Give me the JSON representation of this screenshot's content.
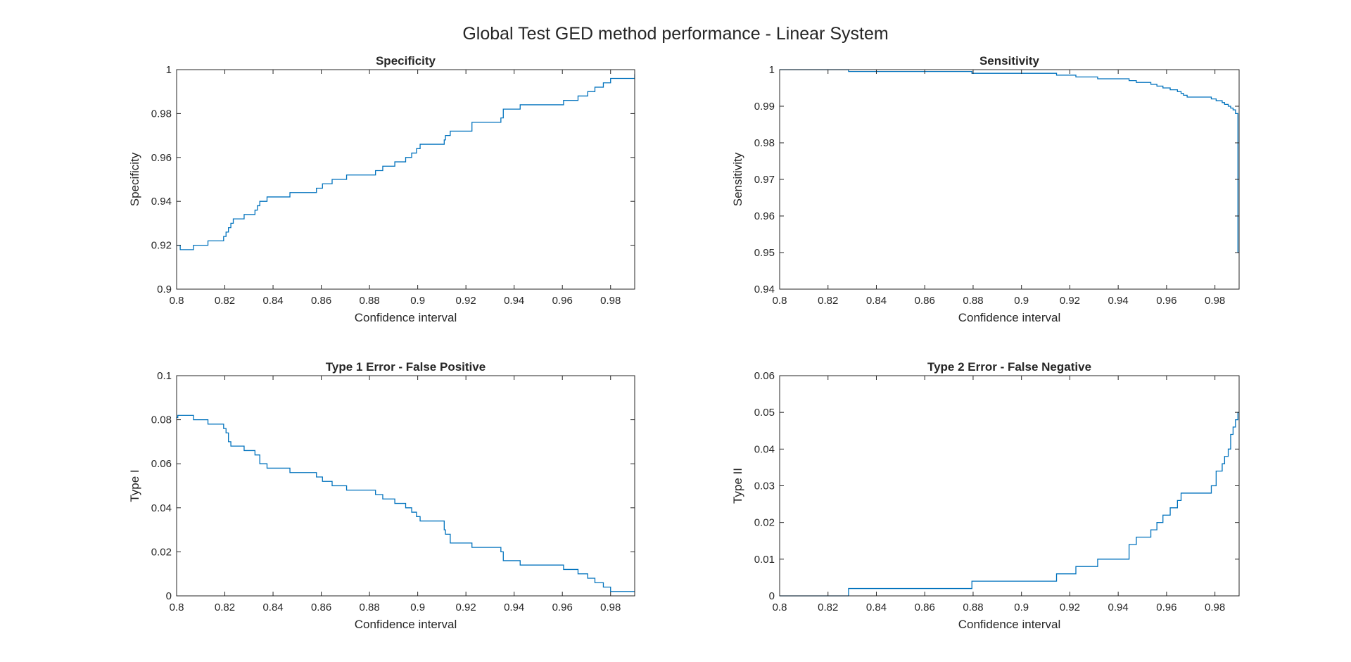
{
  "figure": {
    "title": "Global Test GED method performance - Linear System",
    "line_color": "#0072BD",
    "axis_color": "#262626"
  },
  "chart_data": [
    {
      "type": "line",
      "title": "Specificity",
      "xlabel": "Confidence interval",
      "ylabel": "Specificity",
      "xlim": [
        0.8,
        0.99
      ],
      "ylim": [
        0.9,
        1.0
      ],
      "xticks": [
        0.8,
        0.82,
        0.84,
        0.86,
        0.88,
        0.9,
        0.92,
        0.94,
        0.96,
        0.98
      ],
      "xtick_labels": [
        "0.8",
        "0.82",
        "0.84",
        "0.86",
        "0.88",
        "0.9",
        "0.92",
        "0.94",
        "0.96",
        "0.98"
      ],
      "yticks": [
        0.9,
        0.92,
        0.94,
        0.96,
        0.98,
        1.0
      ],
      "ytick_labels": [
        "0.9",
        "0.92",
        "0.94",
        "0.96",
        "0.98",
        "1"
      ],
      "series": [
        {
          "step": true,
          "x": [
            0.8,
            0.8015,
            0.807,
            0.813,
            0.8195,
            0.8205,
            0.8215,
            0.8225,
            0.8235,
            0.828,
            0.8325,
            0.8335,
            0.8345,
            0.8355,
            0.8375,
            0.847,
            0.858,
            0.8605,
            0.8645,
            0.8705,
            0.8825,
            0.8855,
            0.888,
            0.8905,
            0.895,
            0.8975,
            0.8995,
            0.901,
            0.911,
            0.9115,
            0.9135,
            0.9225,
            0.9345,
            0.9355,
            0.9355,
            0.9425,
            0.9605,
            0.9665,
            0.9705,
            0.9735,
            0.977,
            0.98,
            0.99
          ],
          "y": [
            0.92,
            0.918,
            0.92,
            0.922,
            0.924,
            0.926,
            0.928,
            0.93,
            0.932,
            0.934,
            0.936,
            0.938,
            0.94,
            0.94,
            0.942,
            0.944,
            0.946,
            0.948,
            0.95,
            0.952,
            0.954,
            0.956,
            0.956,
            0.958,
            0.96,
            0.962,
            0.964,
            0.966,
            0.968,
            0.97,
            0.972,
            0.976,
            0.978,
            0.98,
            0.982,
            0.984,
            0.986,
            0.988,
            0.99,
            0.992,
            0.994,
            0.996,
            0.998
          ]
        }
      ]
    },
    {
      "type": "line",
      "title": "Sensitivity",
      "xlabel": "Confidence interval",
      "ylabel": "Sensitivity",
      "xlim": [
        0.8,
        0.99
      ],
      "ylim": [
        0.94,
        1.0
      ],
      "xticks": [
        0.8,
        0.82,
        0.84,
        0.86,
        0.88,
        0.9,
        0.92,
        0.94,
        0.96,
        0.98
      ],
      "xtick_labels": [
        "0.8",
        "0.82",
        "0.84",
        "0.86",
        "0.88",
        "0.9",
        "0.92",
        "0.94",
        "0.96",
        "0.98"
      ],
      "yticks": [
        0.94,
        0.95,
        0.96,
        0.97,
        0.98,
        0.99,
        1.0
      ],
      "ytick_labels": [
        "0.94",
        "0.95",
        "0.96",
        "0.97",
        "0.98",
        "0.99",
        "1"
      ],
      "series": [
        {
          "step": true,
          "x": [
            0.8,
            0.8285,
            0.8795,
            0.9145,
            0.9225,
            0.9315,
            0.9445,
            0.9475,
            0.9535,
            0.956,
            0.9585,
            0.9615,
            0.9645,
            0.966,
            0.967,
            0.9685,
            0.9785,
            0.9805,
            0.983,
            0.984,
            0.9855,
            0.9865,
            0.9875,
            0.9885,
            0.9895
          ],
          "y": [
            1.0,
            0.9995,
            0.999,
            0.9985,
            0.998,
            0.9975,
            0.997,
            0.9965,
            0.996,
            0.9955,
            0.995,
            0.9945,
            0.994,
            0.9935,
            0.993,
            0.9925,
            0.992,
            0.9915,
            0.991,
            0.9905,
            0.99,
            0.9895,
            0.989,
            0.988,
            0.95
          ]
        }
      ]
    },
    {
      "type": "line",
      "title": "Type 1 Error - False Positive",
      "xlabel": "Confidence interval",
      "ylabel": "Type I",
      "xlim": [
        0.8,
        0.99
      ],
      "ylim": [
        0,
        0.1
      ],
      "xticks": [
        0.8,
        0.82,
        0.84,
        0.86,
        0.88,
        0.9,
        0.92,
        0.94,
        0.96,
        0.98
      ],
      "xtick_labels": [
        "0.8",
        "0.82",
        "0.84",
        "0.86",
        "0.88",
        "0.9",
        "0.92",
        "0.94",
        "0.96",
        "0.98"
      ],
      "yticks": [
        0,
        0.02,
        0.04,
        0.06,
        0.08,
        0.1
      ],
      "ytick_labels": [
        "0",
        "0.02",
        "0.04",
        "0.06",
        "0.08",
        "0.1"
      ],
      "series": [
        {
          "step": true,
          "x": [
            0.8,
            0.8005,
            0.807,
            0.813,
            0.8195,
            0.8205,
            0.8215,
            0.8225,
            0.828,
            0.8325,
            0.8345,
            0.8375,
            0.847,
            0.858,
            0.8605,
            0.8645,
            0.8705,
            0.8825,
            0.8855,
            0.8905,
            0.895,
            0.8975,
            0.8995,
            0.901,
            0.911,
            0.9115,
            0.9135,
            0.9225,
            0.9345,
            0.9355,
            0.9425,
            0.9605,
            0.9665,
            0.9705,
            0.9735,
            0.977,
            0.98,
            0.99
          ],
          "y": [
            0.081,
            0.082,
            0.08,
            0.078,
            0.076,
            0.074,
            0.07,
            0.068,
            0.066,
            0.064,
            0.06,
            0.058,
            0.056,
            0.054,
            0.052,
            0.05,
            0.048,
            0.046,
            0.044,
            0.042,
            0.04,
            0.038,
            0.036,
            0.034,
            0.03,
            0.028,
            0.024,
            0.022,
            0.02,
            0.016,
            0.014,
            0.012,
            0.01,
            0.008,
            0.006,
            0.004,
            0.002,
            0.002
          ]
        }
      ]
    },
    {
      "type": "line",
      "title": "Type 2 Error - False Negative",
      "xlabel": "Confidence interval",
      "ylabel": "Type II",
      "xlim": [
        0.8,
        0.99
      ],
      "ylim": [
        0,
        0.06
      ],
      "xticks": [
        0.8,
        0.82,
        0.84,
        0.86,
        0.88,
        0.9,
        0.92,
        0.94,
        0.96,
        0.98
      ],
      "xtick_labels": [
        "0.8",
        "0.82",
        "0.84",
        "0.86",
        "0.88",
        "0.9",
        "0.92",
        "0.94",
        "0.96",
        "0.98"
      ],
      "yticks": [
        0,
        0.01,
        0.02,
        0.03,
        0.04,
        0.05,
        0.06
      ],
      "ytick_labels": [
        "0",
        "0.01",
        "0.02",
        "0.03",
        "0.04",
        "0.05",
        "0.06"
      ],
      "series": [
        {
          "step": true,
          "x": [
            0.8,
            0.8285,
            0.8795,
            0.9145,
            0.9225,
            0.9315,
            0.9445,
            0.9475,
            0.9535,
            0.956,
            0.9585,
            0.9615,
            0.9645,
            0.966,
            0.967,
            0.9685,
            0.9785,
            0.9805,
            0.983,
            0.984,
            0.9855,
            0.9865,
            0.9875,
            0.9885,
            0.9895
          ],
          "y": [
            0,
            0.002,
            0.004,
            0.006,
            0.008,
            0.01,
            0.014,
            0.016,
            0.018,
            0.02,
            0.022,
            0.024,
            0.026,
            0.028,
            0.028,
            0.028,
            0.03,
            0.034,
            0.036,
            0.038,
            0.04,
            0.044,
            0.046,
            0.048,
            0.05
          ]
        }
      ]
    }
  ]
}
